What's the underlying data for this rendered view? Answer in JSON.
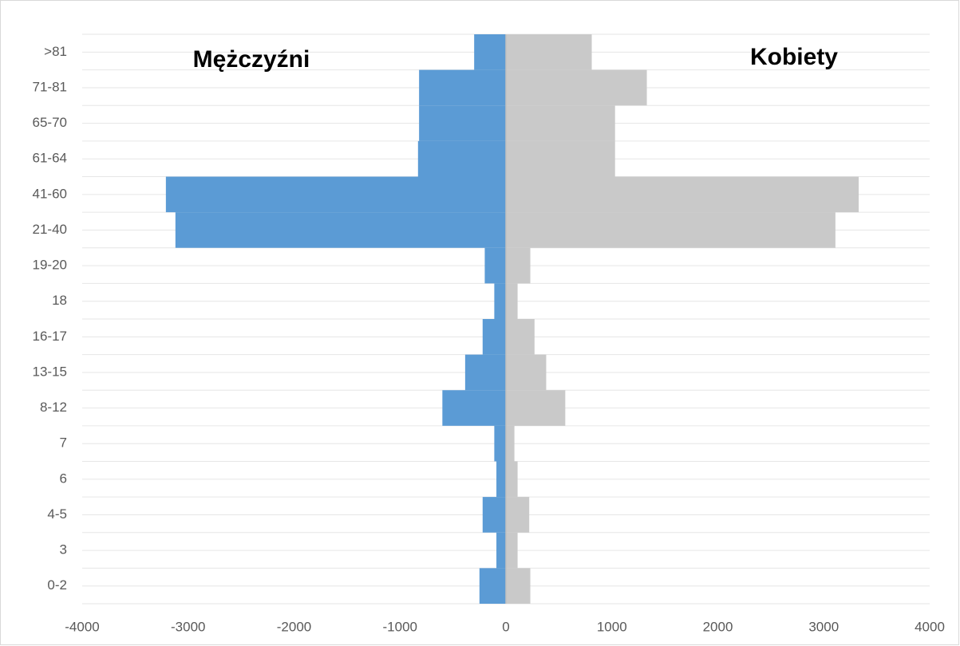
{
  "chart_data": {
    "type": "bar",
    "orientation": "horizontal",
    "stacked": true,
    "categories": [
      ">81",
      "71-81",
      "65-70",
      "61-64",
      "41-60",
      "21-40",
      "19-20",
      "18",
      "16-17",
      "13-15",
      "8-12",
      "7",
      "6",
      "4-5",
      "3",
      "0-2"
    ],
    "series": [
      {
        "name": "Mężczyźni",
        "color": "#5b9bd5",
        "values": [
          -300,
          -820,
          -820,
          -830,
          -3210,
          -3120,
          -200,
          -110,
          -220,
          -385,
          -600,
          -110,
          -90,
          -220,
          -90,
          -250
        ]
      },
      {
        "name": "Kobiety",
        "color": "#c9c9c9",
        "values": [
          810,
          1330,
          1030,
          1030,
          3330,
          3110,
          230,
          110,
          270,
          380,
          560,
          80,
          110,
          220,
          110,
          230
        ]
      }
    ],
    "xlim": [
      -4000,
      4000
    ],
    "xticks": [
      -4000,
      -3000,
      -2000,
      -1000,
      0,
      1000,
      2000,
      3000,
      4000
    ],
    "grid": true
  }
}
